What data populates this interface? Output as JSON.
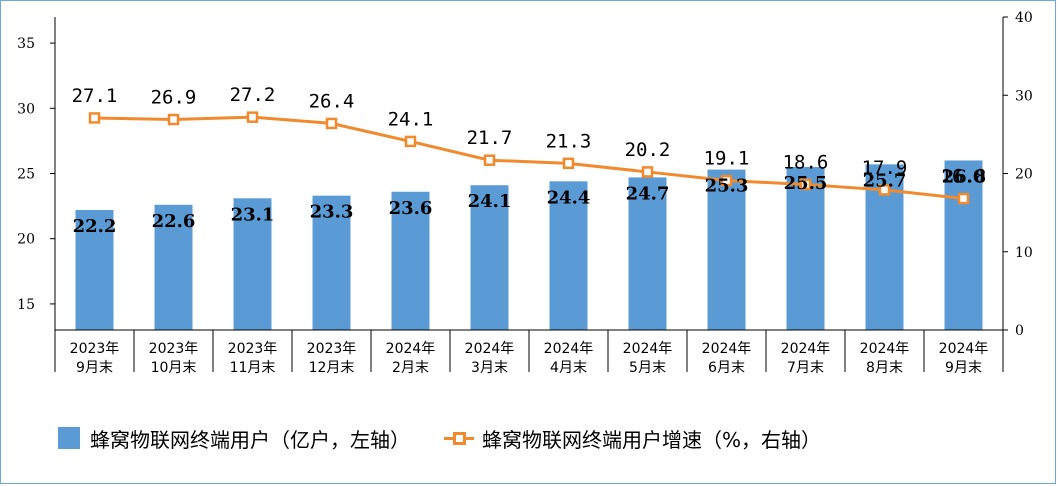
{
  "chart_data": {
    "type": "bar+line",
    "categories": [
      "2023年\n9月末",
      "2023年\n10月末",
      "2023年\n11月末",
      "2023年\n12月末",
      "2024年\n2月末",
      "2024年\n3月末",
      "2024年\n4月末",
      "2024年\n5月末",
      "2024年\n6月末",
      "2024年\n7月末",
      "2024年\n8月末",
      "2024年\n9月末"
    ],
    "series": [
      {
        "name": "蜂窝物联网终端用户（亿户，左轴）",
        "type": "bar",
        "axis": "left",
        "color": "#5b9bd5",
        "values": [
          22.2,
          22.6,
          23.1,
          23.3,
          23.6,
          24.1,
          24.4,
          24.7,
          25.3,
          25.5,
          25.7,
          26.0
        ],
        "labels": [
          "22.2",
          "22.6",
          "23.1",
          "23.3",
          "23.6",
          "24.1",
          "24.4",
          "24.7",
          "25.3",
          "25.5",
          "25.7",
          "26.0"
        ]
      },
      {
        "name": "蜂窝物联网终端用户增速（%，右轴）",
        "type": "line",
        "axis": "right",
        "color": "#f08a2c",
        "values": [
          27.1,
          26.9,
          27.2,
          26.4,
          24.1,
          21.7,
          21.3,
          20.2,
          19.1,
          18.6,
          17.9,
          16.8
        ],
        "labels": [
          "27.1",
          "26.9",
          "27.2",
          "26.4",
          "24.1",
          "21.7",
          "21.3",
          "20.2",
          "19.1",
          "18.6",
          "17.9",
          "16.8"
        ]
      }
    ],
    "left_axis": {
      "ylim": [
        13,
        37
      ],
      "ticks": [
        "15",
        "20",
        "25",
        "30",
        "35"
      ]
    },
    "right_axis": {
      "ylim": [
        0,
        40
      ],
      "ticks": [
        "0",
        "10",
        "20",
        "30",
        "40"
      ]
    },
    "grid": false,
    "legend_position": "bottom"
  }
}
